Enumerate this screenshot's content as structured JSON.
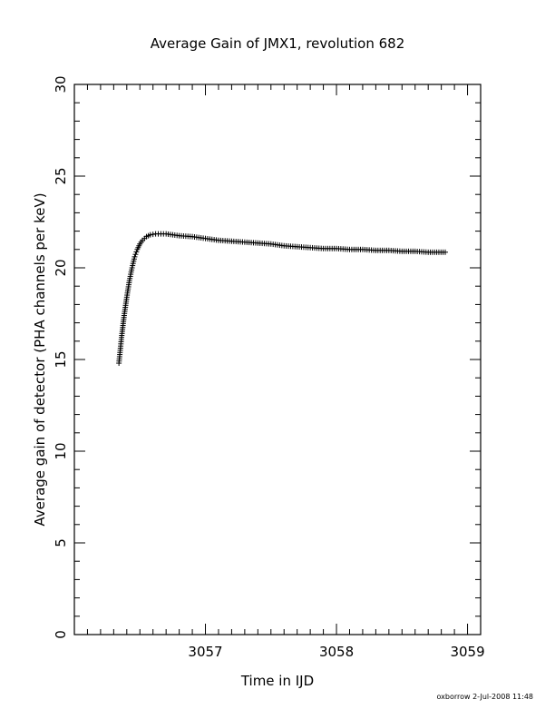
{
  "chart_data": {
    "type": "scatter",
    "title": "Average Gain of JMX1, revolution 682",
    "xlabel": "Time in IJD",
    "ylabel": "Average gain of detector (PHA channels per keV)",
    "xlim": [
      3056.0,
      3059.1
    ],
    "ylim": [
      0,
      30
    ],
    "xticks": [
      3057,
      3058,
      3059
    ],
    "xtick_labels": [
      "3057",
      "3058",
      "3059"
    ],
    "yticks": [
      0,
      5,
      10,
      15,
      20,
      25,
      30
    ],
    "ytick_labels": [
      "0",
      "5",
      "10",
      "15",
      "20",
      "25",
      "30"
    ],
    "grid": false,
    "marker": "plus",
    "series": [
      {
        "x": [
          3056.34,
          3056.36,
          3056.38,
          3056.4,
          3056.42,
          3056.44,
          3056.46,
          3056.48,
          3056.5,
          3056.52,
          3056.55,
          3056.58,
          3056.62,
          3056.66,
          3056.7,
          3056.75,
          3056.8,
          3056.9,
          3057.0,
          3057.1,
          3057.2,
          3057.3,
          3057.4,
          3057.5,
          3057.6,
          3057.7,
          3057.8,
          3057.9,
          3058.0,
          3058.1,
          3058.2,
          3058.3,
          3058.4,
          3058.5,
          3058.6,
          3058.7,
          3058.83
        ],
        "y": [
          14.8,
          16.2,
          17.4,
          18.4,
          19.3,
          20.0,
          20.6,
          21.0,
          21.3,
          21.5,
          21.7,
          21.8,
          21.85,
          21.85,
          21.85,
          21.8,
          21.75,
          21.7,
          21.6,
          21.5,
          21.45,
          21.4,
          21.35,
          21.3,
          21.2,
          21.15,
          21.1,
          21.05,
          21.05,
          21.0,
          21.0,
          20.95,
          20.95,
          20.9,
          20.9,
          20.85,
          20.85
        ]
      }
    ]
  },
  "footer": {
    "stamp": "oxborrow   2-Jul-2008 11:48"
  }
}
